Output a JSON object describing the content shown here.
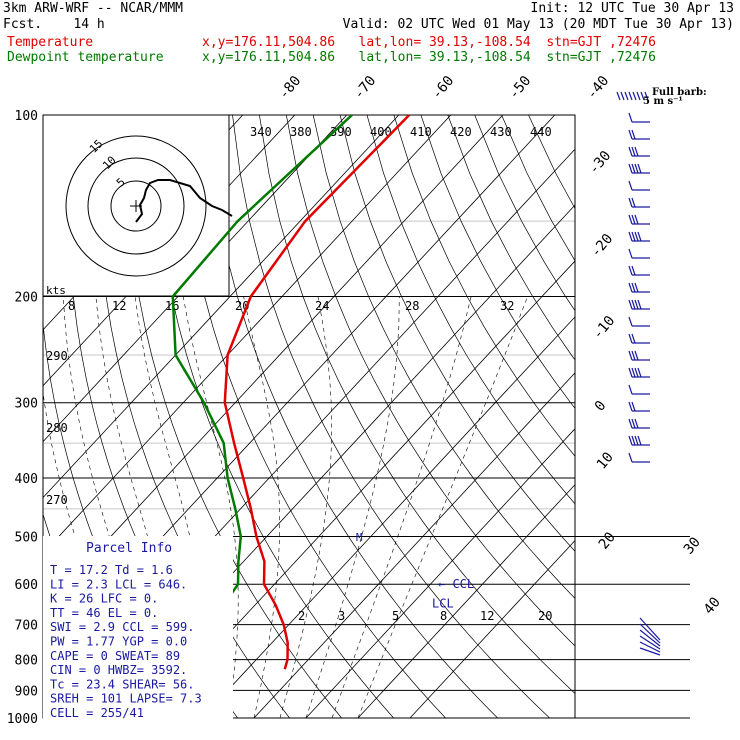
{
  "header": {
    "model": "3km ARW-WRF -- NCAR/MMM",
    "init": "Init: 12 UTC Tue 30 Apr 13",
    "fcst": "Fcst.    14 h",
    "valid": "Valid: 02 UTC Wed 01 May 13 (20 MDT Tue 30 Apr 13)",
    "temp_label": "Temperature",
    "temp_loc": "x,y=176.11,504.86   lat,lon= 39.13,-108.54  stn=GJT ,72476",
    "dew_label": "Dewpoint temperature",
    "dew_loc": "x,y=176.11,504.86   lat,lon= 39.13,-108.54  stn=GJT ,72476"
  },
  "colors": {
    "temperature": "#e00000",
    "dewpoint": "#007a00",
    "parcel": "#1a1aa0",
    "wind": "#1a1aa0"
  },
  "chart_data": {
    "type": "line",
    "subtype": "skew-T log-P sounding",
    "pressure_levels": [
      "100",
      "200",
      "300",
      "400",
      "500",
      "600",
      "700",
      "800",
      "900",
      "1000"
    ],
    "top_temp_labels": [
      "-80",
      "-70",
      "-60",
      "-50",
      "-40"
    ],
    "side_temp_labels": [
      "-30",
      "-20",
      "-10",
      "0",
      "10",
      "20",
      "30",
      "40"
    ],
    "theta_labels_top": [
      "340",
      "380",
      "390",
      "400",
      "410",
      "420",
      "430",
      "440"
    ],
    "theta_labels_left": [
      "290",
      "280",
      "270"
    ],
    "wind_speed_labels": [
      "8",
      "12",
      "16",
      "20",
      "24",
      "28",
      "32"
    ],
    "mixing_ratio_labels": [
      "2",
      "3",
      "5",
      "8",
      "12",
      "20"
    ],
    "hodo_unit": "kts",
    "hodo_rings": [
      "15",
      "10",
      "5"
    ],
    "barb_key": "Full barb:\n5 m s⁻¹",
    "series": [
      {
        "name": "Temperature",
        "points": [
          [
            100,
            -58
          ],
          [
            150,
            -59
          ],
          [
            200,
            -56
          ],
          [
            250,
            -50
          ],
          [
            300,
            -42
          ],
          [
            350,
            -33
          ],
          [
            400,
            -25
          ],
          [
            450,
            -18
          ],
          [
            500,
            -12
          ],
          [
            550,
            -6
          ],
          [
            600,
            -2
          ],
          [
            650,
            4
          ],
          [
            700,
            9
          ],
          [
            750,
            13
          ],
          [
            800,
            16
          ],
          [
            830,
            17.2
          ]
        ]
      },
      {
        "name": "Dewpoint temperature",
        "points": [
          [
            100,
            -69
          ],
          [
            150,
            -72
          ],
          [
            200,
            -71
          ],
          [
            250,
            -60
          ],
          [
            300,
            -46
          ],
          [
            350,
            -35
          ],
          [
            400,
            -28
          ],
          [
            450,
            -21
          ],
          [
            500,
            -15
          ],
          [
            550,
            -11
          ],
          [
            600,
            -7
          ],
          [
            650,
            -6
          ],
          [
            700,
            -4
          ],
          [
            750,
            -1
          ],
          [
            800,
            0.5
          ],
          [
            830,
            1.6
          ]
        ]
      }
    ],
    "markers": [
      {
        "label": "CCL",
        "pressure": 599
      },
      {
        "label": "LCL",
        "pressure": 646
      }
    ]
  },
  "parcel_info": {
    "title": "Parcel Info",
    "rows": [
      "T  =   17.2  Td =   1.6",
      "LI =    2.3  LCL =  646.",
      "K  =     26  LFC =    0.",
      "TT =     46  EL =     0.",
      "SWI =   2.9  CCL =  599.",
      "PW =   1.77  YGP =   0.0",
      "CAPE =    0  SWEAT=   89",
      "CIN =     0  HWBZ= 3592.",
      "Tc =   23.4  SHEAR=   56.",
      "SREH =  101  LAPSE=   7.3",
      "CELL = 255/41"
    ]
  }
}
